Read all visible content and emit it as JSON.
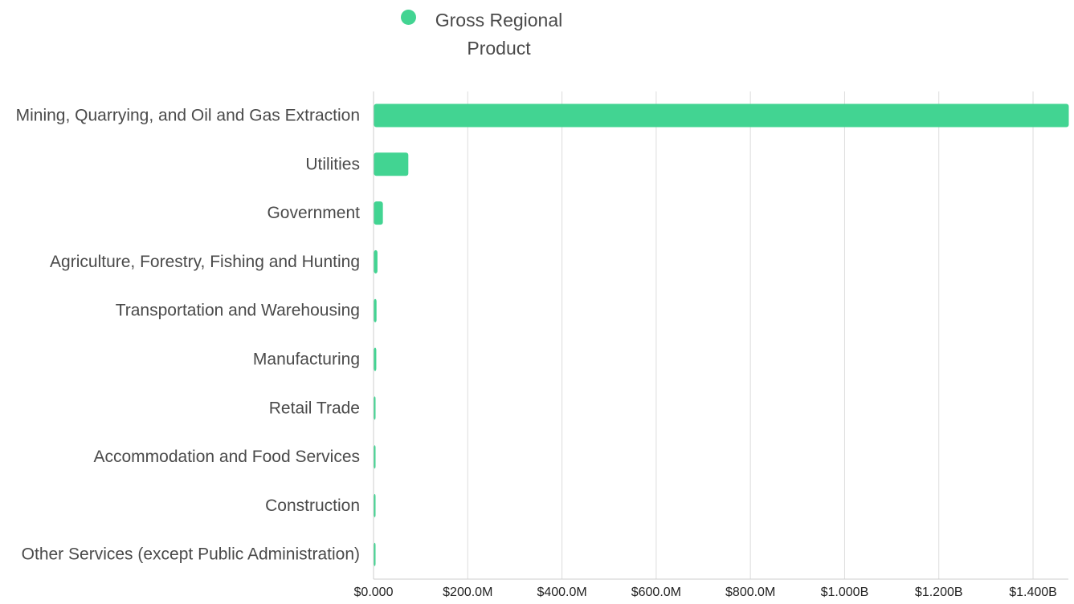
{
  "chart_data": {
    "type": "bar",
    "orientation": "horizontal",
    "categories": [
      "Mining, Quarrying, and Oil and Gas Extraction",
      "Utilities",
      "Government",
      "Agriculture, Forestry, Fishing and Hunting",
      "Transportation and Warehousing",
      "Manufacturing",
      "Retail Trade",
      "Accommodation and Food Services",
      "Construction",
      "Other Services (except Public Administration)"
    ],
    "series": [
      {
        "name": "Gross Regional Product",
        "values": [
          1475000000,
          73000000,
          19000000,
          7500000,
          5500000,
          5000000,
          1200000,
          1000000,
          800000,
          700000
        ]
      }
    ],
    "x_ticks": [
      0,
      200000000,
      400000000,
      600000000,
      800000000,
      1000000000,
      1200000000,
      1400000000
    ],
    "x_tick_labels": [
      "$0.000",
      "$200.0M",
      "$400.0M",
      "$600.0M",
      "$800.0M",
      "$1.000B",
      "$1.200B",
      "$1.400B"
    ],
    "xlim": [
      0,
      1475000000
    ],
    "grid": true,
    "legend_position": "top-center",
    "colors": {
      "bar": "#42d492",
      "grid": "#dcdcdc",
      "axis": "#cccccc",
      "category_text": "#4a4a4a",
      "tick_text": "#222222"
    }
  }
}
